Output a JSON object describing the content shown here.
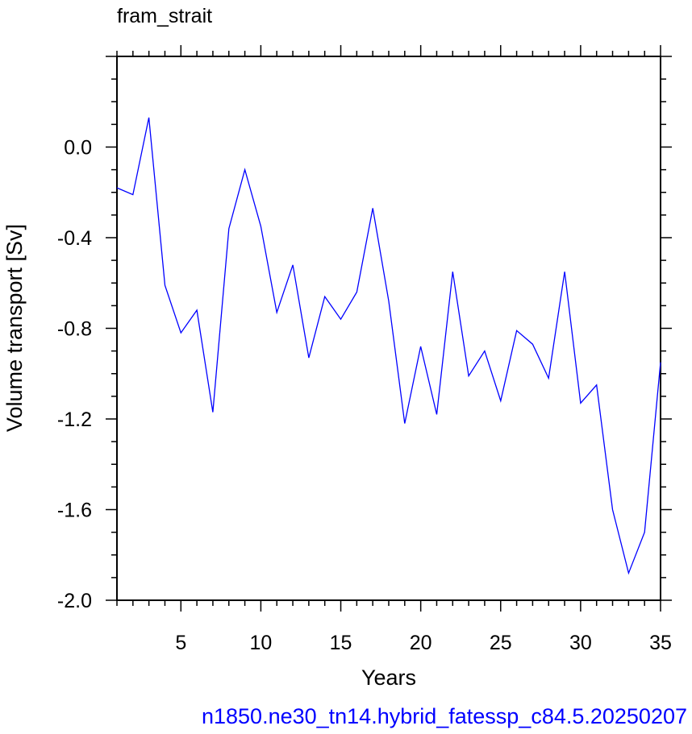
{
  "chart_data": {
    "type": "line",
    "title": "fram_strait",
    "xlabel": "Years",
    "ylabel": "Volume transport [Sv]",
    "caption": "n1850.ne30_tn14.hybrid_fatessp_c84.5.20250207",
    "xlim": [
      1,
      35
    ],
    "ylim": [
      -2.0,
      0.4
    ],
    "x_ticks": [
      5,
      10,
      15,
      20,
      25,
      30,
      35
    ],
    "y_ticks": [
      0.0,
      -0.4,
      -0.8,
      -1.2,
      -1.6,
      -2.0
    ],
    "y_tick_labels": [
      "0.0",
      "-0.4",
      "-0.8",
      "-1.2",
      "-1.6",
      "-2.0"
    ],
    "grid": false,
    "line_color": "#0000ff",
    "caption_color": "#0000ff",
    "x": [
      1,
      2,
      3,
      4,
      5,
      6,
      7,
      8,
      9,
      10,
      11,
      12,
      13,
      14,
      15,
      16,
      17,
      18,
      19,
      20,
      21,
      22,
      23,
      24,
      25,
      26,
      27,
      28,
      29,
      30,
      31,
      32,
      33,
      34,
      35
    ],
    "values": [
      -0.18,
      -0.21,
      0.13,
      -0.61,
      -0.82,
      -0.72,
      -1.17,
      -0.36,
      -0.1,
      -0.35,
      -0.73,
      -0.52,
      -0.93,
      -0.66,
      -0.76,
      -0.64,
      -0.27,
      -0.68,
      -1.22,
      -0.88,
      -1.18,
      -0.55,
      -1.01,
      -0.9,
      -1.12,
      -0.81,
      -0.87,
      -1.02,
      -0.55,
      -1.13,
      -1.05,
      -1.6,
      -1.88,
      -1.7,
      -0.95
    ]
  }
}
